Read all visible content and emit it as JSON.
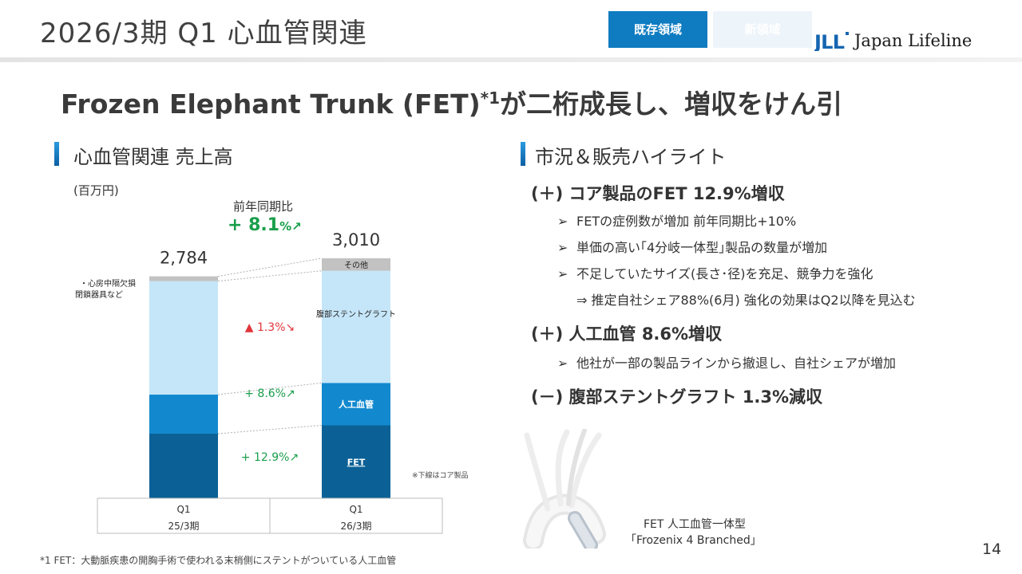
{
  "header": {
    "title": "2026/3期 Q1 心血管関連",
    "tag_existing": "既存領域",
    "tag_new": "新領域",
    "logo_text": "Japan Lifeline",
    "logo_mark": "JLL"
  },
  "headline": {
    "main": "Frozen Elephant Trunk (FET)",
    "sup": "*1",
    "tail": "が二桁成長し、増収をけん引"
  },
  "left_section": {
    "title": "心血管関連 売上高",
    "unit": "(百万円)",
    "yoy_label": "前年同期比",
    "yoy_value": "+ 8.1",
    "yoy_suffix": "%↗"
  },
  "right_section": {
    "title": "市況＆販売ハイライト",
    "blocks": [
      {
        "heading": "(＋) コア製品のFET 12.9%増収",
        "bullets": [
          "FETの症例数が増加 前年同期比+10%",
          "単価の高い｢4分岐一体型｣製品の数量が増加",
          "不足していたサイズ(長さ･径)を充足、競争力を強化"
        ],
        "sub": "⇒ 推定自社シェア88%(6月) 強化の効果はQ2以降を見込む"
      },
      {
        "heading": "(＋) 人工血管 8.6%増収",
        "bullets": [
          "他社が一部の製品ラインから撤退し、自社シェアが増加"
        ]
      },
      {
        "heading": "(－) 腹部ステントグラフト 1.3%減収"
      }
    ],
    "bullet_marker": "➢"
  },
  "product": {
    "caption1": "FET 人工血管一体型",
    "caption2": "｢Frozenix 4 Branched｣"
  },
  "footnote": "*1 FET：大動脈疾患の開胸手術で使われる末梢側にステントがついている人工血管",
  "core_note": "※下線はコア製品",
  "page_number": "14",
  "colors": {
    "fet": "#0b6196",
    "graft": "#1289cf",
    "stent": "#c5e6f8",
    "other": "#c2c2c2",
    "up": "#1a9e4b",
    "down": "#e0353b",
    "accent": "#0f7cc1"
  },
  "chart_data": {
    "type": "bar",
    "stacked": true,
    "categories": [
      [
        "Q1",
        "25/3期"
      ],
      [
        "Q1",
        "26/3期"
      ]
    ],
    "totals": [
      2784,
      3010
    ],
    "total_labels": [
      "2,784",
      "3,010"
    ],
    "series": [
      {
        "name": "FET",
        "values": [
          810,
          915
        ],
        "change": "+ 12.9%",
        "direction": "up"
      },
      {
        "name": "人工血管",
        "values": [
          490,
          532
        ],
        "change": "+ 8.6%",
        "direction": "up"
      },
      {
        "name": "腹部ステントグラフト",
        "values": [
          1424,
          1406
        ],
        "change": "▲ 1.3%",
        "direction": "down"
      },
      {
        "name": "その他",
        "values": [
          60,
          157
        ]
      }
    ],
    "left_bar_label": [
      "・心房中隔欠損",
      "閉鎖器具など"
    ]
  }
}
